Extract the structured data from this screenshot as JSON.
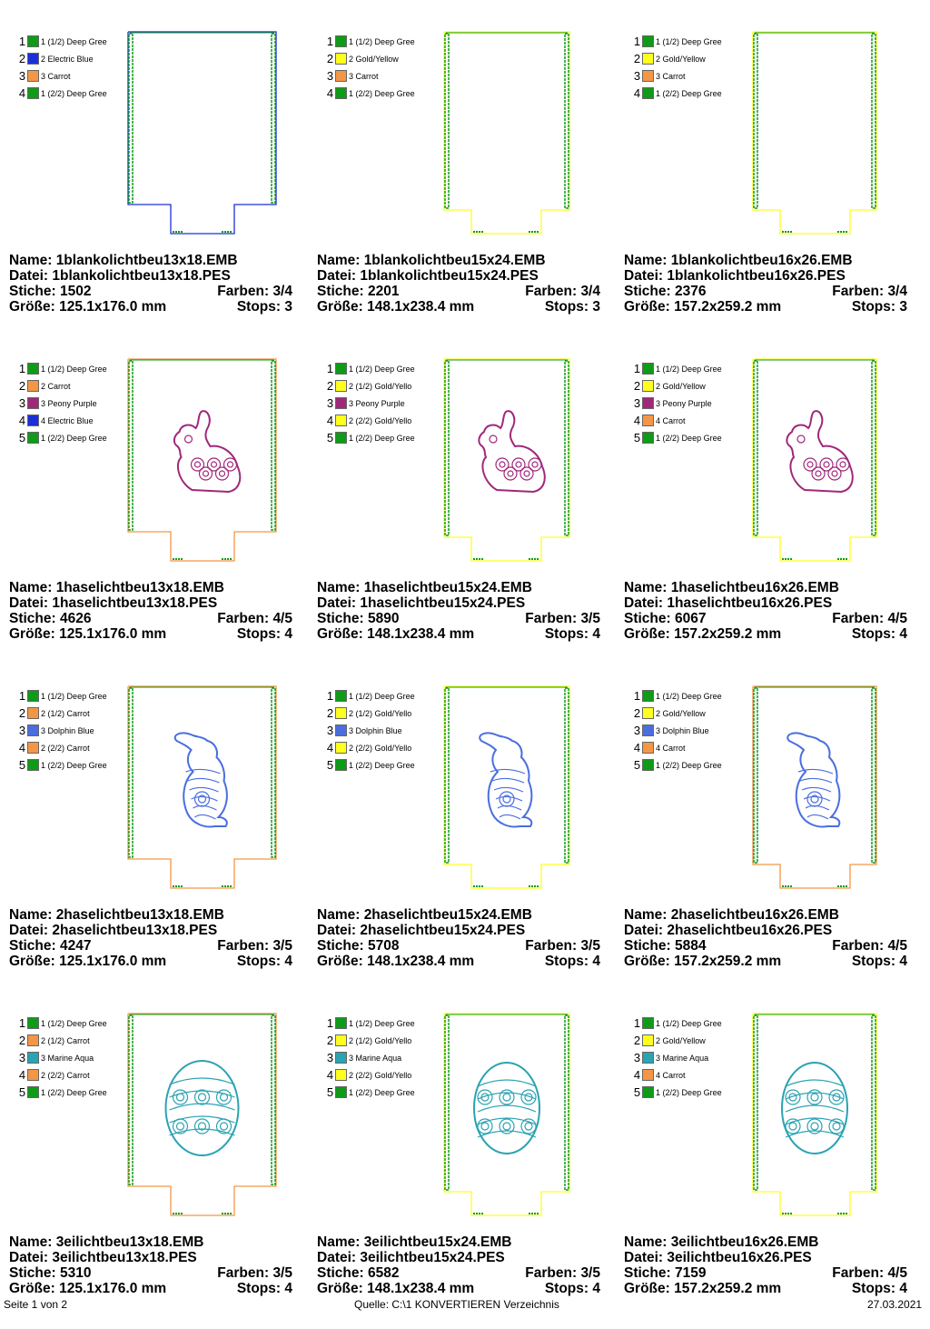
{
  "labels": {
    "name": "Name: ",
    "file": "Datei: ",
    "stitches": "Stiche: ",
    "colors": "Farben: ",
    "size": "Größe: ",
    "stops": "Stops: "
  },
  "colors": {
    "deep_green": "#0e9b18",
    "electric_blue": "#1b2fd9",
    "carrot": "#f39646",
    "gold_yellow": "#ffff1e",
    "peony_purple": "#a0287a",
    "dolphin_blue": "#4a6ee0",
    "marine_aqua": "#2aa3b2"
  },
  "designs": [
    {
      "name": "1blankolichtbeu13x18.EMB",
      "file": "1blankolichtbeu13x18.PES",
      "stitches": "1502",
      "colors": "3/4",
      "size": "125.1x176.0 mm",
      "stops": "3",
      "motif": "none",
      "palette": [
        {
          "num": "1",
          "label": "1 (1/2) Deep Gree",
          "color": "deep_green"
        },
        {
          "num": "2",
          "label": "2 Electric Blue",
          "color": "electric_blue"
        },
        {
          "num": "3",
          "label": "3 Carrot",
          "color": "carrot"
        },
        {
          "num": "4",
          "label": "1 (2/2) Deep Gree",
          "color": "deep_green"
        }
      ]
    },
    {
      "name": "1blankolichtbeu15x24.EMB",
      "file": "1blankolichtbeu15x24.PES",
      "stitches": "2201",
      "colors": "3/4",
      "size": "148.1x238.4 mm",
      "stops": "3",
      "motif": "none",
      "palette": [
        {
          "num": "1",
          "label": "1 (1/2) Deep Gree",
          "color": "deep_green"
        },
        {
          "num": "2",
          "label": "2 Gold/Yellow",
          "color": "gold_yellow"
        },
        {
          "num": "3",
          "label": "3 Carrot",
          "color": "carrot"
        },
        {
          "num": "4",
          "label": "1 (2/2) Deep Gree",
          "color": "deep_green"
        }
      ]
    },
    {
      "name": "1blankolichtbeu16x26.EMB",
      "file": "1blankolichtbeu16x26.PES",
      "stitches": "2376",
      "colors": "3/4",
      "size": "157.2x259.2 mm",
      "stops": "3",
      "motif": "none",
      "palette": [
        {
          "num": "1",
          "label": "1 (1/2) Deep Gree",
          "color": "deep_green"
        },
        {
          "num": "2",
          "label": "2 Gold/Yellow",
          "color": "gold_yellow"
        },
        {
          "num": "3",
          "label": "3 Carrot",
          "color": "carrot"
        },
        {
          "num": "4",
          "label": "1 (2/2) Deep Gree",
          "color": "deep_green"
        }
      ]
    },
    {
      "name": "1haselichtbeu13x18.EMB",
      "file": "1haselichtbeu13x18.PES",
      "stitches": "4626",
      "colors": "4/5",
      "size": "125.1x176.0 mm",
      "stops": "4",
      "motif": "bunny-sitting",
      "palette": [
        {
          "num": "1",
          "label": "1 (1/2) Deep Gree",
          "color": "deep_green"
        },
        {
          "num": "2",
          "label": "2 Carrot",
          "color": "carrot"
        },
        {
          "num": "3",
          "label": "3 Peony Purple",
          "color": "peony_purple"
        },
        {
          "num": "4",
          "label": "4 Electric Blue",
          "color": "electric_blue"
        },
        {
          "num": "5",
          "label": "1 (2/2) Deep Gree",
          "color": "deep_green"
        }
      ]
    },
    {
      "name": "1haselichtbeu15x24.EMB",
      "file": "1haselichtbeu15x24.PES",
      "stitches": "5890",
      "colors": "3/5",
      "size": "148.1x238.4 mm",
      "stops": "4",
      "motif": "bunny-sitting",
      "palette": [
        {
          "num": "1",
          "label": "1 (1/2) Deep Gree",
          "color": "deep_green"
        },
        {
          "num": "2",
          "label": "2 (1/2) Gold/Yello",
          "color": "gold_yellow"
        },
        {
          "num": "3",
          "label": "3 Peony Purple",
          "color": "peony_purple"
        },
        {
          "num": "4",
          "label": "2 (2/2) Gold/Yello",
          "color": "gold_yellow"
        },
        {
          "num": "5",
          "label": "1 (2/2) Deep Gree",
          "color": "deep_green"
        }
      ]
    },
    {
      "name": "1haselichtbeu16x26.EMB",
      "file": "1haselichtbeu16x26.PES",
      "stitches": "6067",
      "colors": "4/5",
      "size": "157.2x259.2 mm",
      "stops": "4",
      "motif": "bunny-sitting",
      "palette": [
        {
          "num": "1",
          "label": "1 (1/2) Deep Gree",
          "color": "deep_green"
        },
        {
          "num": "2",
          "label": "2 Gold/Yellow",
          "color": "gold_yellow"
        },
        {
          "num": "3",
          "label": "3 Peony Purple",
          "color": "peony_purple"
        },
        {
          "num": "4",
          "label": "4 Carrot",
          "color": "carrot"
        },
        {
          "num": "5",
          "label": "1 (2/2) Deep Gree",
          "color": "deep_green"
        }
      ]
    },
    {
      "name": "2haselichtbeu13x18.EMB",
      "file": "2haselichtbeu13x18.PES",
      "stitches": "4247",
      "colors": "3/5",
      "size": "125.1x176.0 mm",
      "stops": "4",
      "motif": "bunny-standing",
      "palette": [
        {
          "num": "1",
          "label": "1 (1/2) Deep Gree",
          "color": "deep_green"
        },
        {
          "num": "2",
          "label": "2 (1/2) Carrot",
          "color": "carrot"
        },
        {
          "num": "3",
          "label": "3 Dolphin Blue",
          "color": "dolphin_blue"
        },
        {
          "num": "4",
          "label": "2 (2/2) Carrot",
          "color": "carrot"
        },
        {
          "num": "5",
          "label": "1 (2/2) Deep Gree",
          "color": "deep_green"
        }
      ]
    },
    {
      "name": "2haselichtbeu15x24.EMB",
      "file": "2haselichtbeu15x24.PES",
      "stitches": "5708",
      "colors": "3/5",
      "size": "148.1x238.4 mm",
      "stops": "4",
      "motif": "bunny-standing",
      "palette": [
        {
          "num": "1",
          "label": "1 (1/2) Deep Gree",
          "color": "deep_green"
        },
        {
          "num": "2",
          "label": "2 (1/2) Gold/Yello",
          "color": "gold_yellow"
        },
        {
          "num": "3",
          "label": "3 Dolphin Blue",
          "color": "dolphin_blue"
        },
        {
          "num": "4",
          "label": "2 (2/2) Gold/Yello",
          "color": "gold_yellow"
        },
        {
          "num": "5",
          "label": "1 (2/2) Deep Gree",
          "color": "deep_green"
        }
      ]
    },
    {
      "name": "2haselichtbeu16x26.EMB",
      "file": "2haselichtbeu16x26.PES",
      "stitches": "5884",
      "colors": "4/5",
      "size": "157.2x259.2 mm",
      "stops": "4",
      "motif": "bunny-standing",
      "palette": [
        {
          "num": "1",
          "label": "1 (1/2) Deep Gree",
          "color": "deep_green"
        },
        {
          "num": "2",
          "label": "2 Gold/Yellow",
          "color": "gold_yellow"
        },
        {
          "num": "3",
          "label": "3 Dolphin Blue",
          "color": "dolphin_blue"
        },
        {
          "num": "4",
          "label": "4 Carrot",
          "color": "carrot"
        },
        {
          "num": "5",
          "label": "1 (2/2) Deep Gree",
          "color": "deep_green"
        }
      ]
    },
    {
      "name": "3eilichtbeu13x18.EMB",
      "file": "3eilichtbeu13x18.PES",
      "stitches": "5310",
      "colors": "3/5",
      "size": "125.1x176.0 mm",
      "stops": "4",
      "motif": "egg",
      "palette": [
        {
          "num": "1",
          "label": "1 (1/2) Deep Gree",
          "color": "deep_green"
        },
        {
          "num": "2",
          "label": "2 (1/2) Carrot",
          "color": "carrot"
        },
        {
          "num": "3",
          "label": "3 Marine Aqua",
          "color": "marine_aqua"
        },
        {
          "num": "4",
          "label": "2 (2/2) Carrot",
          "color": "carrot"
        },
        {
          "num": "5",
          "label": "1 (2/2) Deep Gree",
          "color": "deep_green"
        }
      ]
    },
    {
      "name": "3eilichtbeu15x24.EMB",
      "file": "3eilichtbeu15x24.PES",
      "stitches": "6582",
      "colors": "3/5",
      "size": "148.1x238.4 mm",
      "stops": "4",
      "motif": "egg",
      "palette": [
        {
          "num": "1",
          "label": "1 (1/2) Deep Gree",
          "color": "deep_green"
        },
        {
          "num": "2",
          "label": "2 (1/2) Gold/Yello",
          "color": "gold_yellow"
        },
        {
          "num": "3",
          "label": "3 Marine Aqua",
          "color": "marine_aqua"
        },
        {
          "num": "4",
          "label": "2 (2/2) Gold/Yello",
          "color": "gold_yellow"
        },
        {
          "num": "5",
          "label": "1 (2/2) Deep Gree",
          "color": "deep_green"
        }
      ]
    },
    {
      "name": "3eilichtbeu16x26.EMB",
      "file": "3eilichtbeu16x26.PES",
      "stitches": "7159",
      "colors": "4/5",
      "size": "157.2x259.2 mm",
      "stops": "4",
      "motif": "egg",
      "palette": [
        {
          "num": "1",
          "label": "1 (1/2) Deep Gree",
          "color": "deep_green"
        },
        {
          "num": "2",
          "label": "2 Gold/Yellow",
          "color": "gold_yellow"
        },
        {
          "num": "3",
          "label": "3 Marine Aqua",
          "color": "marine_aqua"
        },
        {
          "num": "4",
          "label": "4 Carrot",
          "color": "carrot"
        },
        {
          "num": "5",
          "label": "1 (2/2) Deep Gree",
          "color": "deep_green"
        }
      ]
    }
  ],
  "footer": {
    "page": "Seite 1 von 2",
    "source": "Quelle: C:\\1 KONVERTIEREN Verzeichnis",
    "date": "27.03.2021"
  }
}
